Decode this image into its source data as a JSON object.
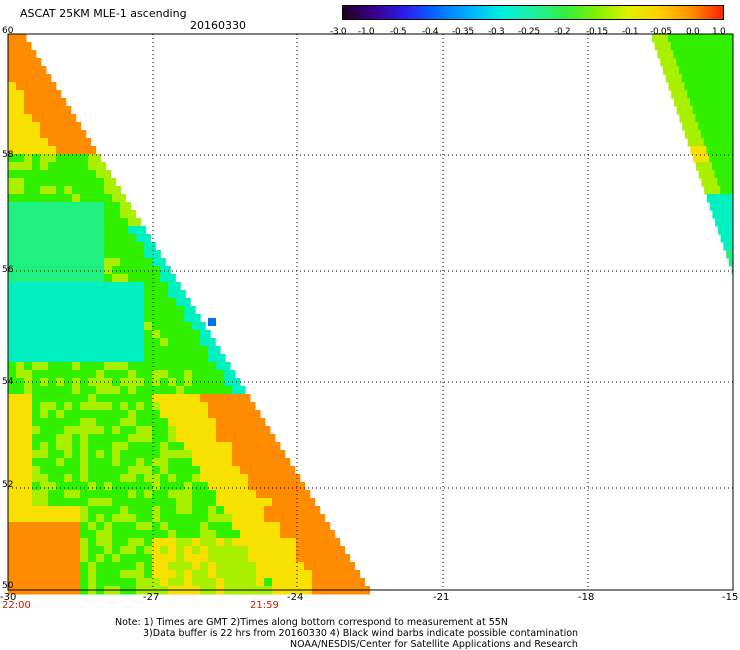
{
  "header": {
    "title": "ASCAT 25KM MLE-1 ascending",
    "date": "20160330"
  },
  "colorbar": {
    "labels": [
      "-3.0",
      "-1.0",
      "-0.5",
      "-0.4",
      "-0.35",
      "-0.3",
      "-0.25",
      "-0.2",
      "-0.15",
      "-0.1",
      "-0.05",
      "0.0",
      "1.0"
    ],
    "colors": [
      "#200020",
      "#3a0090",
      "#2a20f0",
      "#0070ff",
      "#00b0ff",
      "#00f0e0",
      "#20f0a0",
      "#30f040",
      "#80f000",
      "#e0f000",
      "#ffd000",
      "#ff9000",
      "#ff2000"
    ]
  },
  "axes": {
    "lon_ticks": [
      "-30",
      "-27",
      "-24",
      "-21",
      "-18",
      "-15"
    ],
    "lat_ticks": [
      "60",
      "58",
      "56",
      "54",
      "52",
      "50"
    ],
    "time_labels": [
      "22:00",
      "21:59"
    ]
  },
  "notes": [
    "Note: 1) Times are GMT 2)Times along bottom correspond to measurement at 55N",
    "3)Data buffer is 22 hrs from 20160330 4) Black wind barbs indicate possible contamination",
    "NOAA/NESDIS/Center for Satellite Applications and Research"
  ]
}
